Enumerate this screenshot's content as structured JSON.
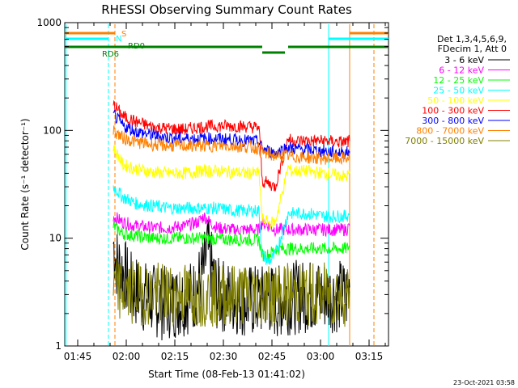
{
  "chart_data": {
    "type": "line",
    "title": "RHESSI Observing Summary Count Rates",
    "xlabel": "Start Time (08-Feb-13 01:41:02)",
    "ylabel": "Count Rate (s⁻¹ detector⁻¹)",
    "y_scale": "log",
    "ylim": [
      1,
      1000
    ],
    "xlim_minutes": [
      0,
      100
    ],
    "x_ticks": [
      {
        "minute": 4,
        "label": "01:45"
      },
      {
        "minute": 19,
        "label": "02:00"
      },
      {
        "minute": 34,
        "label": "02:15"
      },
      {
        "minute": 49,
        "label": "02:30"
      },
      {
        "minute": 64,
        "label": "02:45"
      },
      {
        "minute": 79,
        "label": "03:00"
      },
      {
        "minute": 94,
        "label": "03:15"
      }
    ],
    "y_ticks": [
      {
        "value": 1,
        "label": "1"
      },
      {
        "value": 10,
        "label": "10"
      },
      {
        "value": 100,
        "label": "100"
      },
      {
        "value": 1000,
        "label": "1000"
      }
    ],
    "legend": {
      "placement": "right",
      "header": [
        "Det 1,3,4,5,6,9,",
        "FDecim 1, Att 0"
      ]
    },
    "series": [
      {
        "name": "3 - 6 keV",
        "color": "#000000",
        "points": [
          [
            15,
            9
          ],
          [
            16,
            6
          ],
          [
            18,
            5
          ],
          [
            20,
            3.5
          ],
          [
            25,
            2.8
          ],
          [
            30,
            2.5
          ],
          [
            35,
            2.6
          ],
          [
            40,
            3
          ],
          [
            43,
            5
          ],
          [
            44,
            8
          ],
          [
            45,
            6
          ],
          [
            47,
            3
          ],
          [
            52,
            2.8
          ],
          [
            57,
            2.6
          ],
          [
            60,
            2.6
          ],
          [
            61,
            2.6
          ],
          [
            62,
            3
          ],
          [
            63,
            2.8
          ],
          [
            65,
            2.5
          ],
          [
            69,
            2.8
          ],
          [
            70,
            2.8
          ],
          [
            75,
            2.9
          ],
          [
            80,
            3
          ],
          [
            85,
            2.9
          ],
          [
            87,
            2.9
          ],
          [
            88,
            3.5
          ]
        ]
      },
      {
        "name": "6 - 12 keV",
        "color": "#ff00ff",
        "points": [
          [
            15,
            16
          ],
          [
            18,
            14
          ],
          [
            22,
            13
          ],
          [
            27,
            12.5
          ],
          [
            32,
            12.5
          ],
          [
            37,
            13
          ],
          [
            41,
            14
          ],
          [
            43,
            16
          ],
          [
            45,
            14
          ],
          [
            47,
            12.5
          ],
          [
            52,
            12
          ],
          [
            57,
            12
          ],
          [
            60,
            12
          ],
          [
            61,
            14
          ],
          [
            63,
            13
          ],
          [
            65,
            12
          ],
          [
            69,
            12
          ],
          [
            70,
            12
          ],
          [
            75,
            12
          ],
          [
            80,
            12
          ],
          [
            85,
            12
          ],
          [
            87,
            12
          ],
          [
            88,
            13
          ]
        ]
      },
      {
        "name": "12 - 25 keV",
        "color": "#00ff00",
        "points": [
          [
            15,
            13
          ],
          [
            18,
            11
          ],
          [
            22,
            10.5
          ],
          [
            27,
            10
          ],
          [
            32,
            10
          ],
          [
            37,
            10
          ],
          [
            42,
            10
          ],
          [
            47,
            9.8
          ],
          [
            52,
            9.7
          ],
          [
            57,
            9.7
          ],
          [
            60,
            9.6
          ],
          [
            61,
            7
          ],
          [
            63,
            7
          ],
          [
            65,
            8
          ],
          [
            69,
            8
          ],
          [
            70,
            8
          ],
          [
            75,
            8
          ],
          [
            80,
            8
          ],
          [
            85,
            8
          ],
          [
            87,
            8
          ],
          [
            88,
            8.5
          ]
        ]
      },
      {
        "name": "25 - 50 keV",
        "color": "#00ffff",
        "points": [
          [
            15,
            30
          ],
          [
            18,
            24
          ],
          [
            22,
            21
          ],
          [
            27,
            20
          ],
          [
            32,
            19
          ],
          [
            37,
            19
          ],
          [
            42,
            19
          ],
          [
            47,
            19
          ],
          [
            52,
            18
          ],
          [
            57,
            18
          ],
          [
            60,
            18
          ],
          [
            61,
            7
          ],
          [
            63,
            6
          ],
          [
            65,
            7
          ],
          [
            69,
            17
          ],
          [
            70,
            17
          ],
          [
            75,
            17
          ],
          [
            80,
            16
          ],
          [
            85,
            16
          ],
          [
            87,
            16
          ],
          [
            88,
            17
          ]
        ]
      },
      {
        "name": "50 - 100 keV",
        "color": "#ffff00",
        "points": [
          [
            15,
            70
          ],
          [
            18,
            48
          ],
          [
            22,
            44
          ],
          [
            27,
            41
          ],
          [
            32,
            40
          ],
          [
            37,
            40
          ],
          [
            42,
            42
          ],
          [
            47,
            42
          ],
          [
            52,
            41
          ],
          [
            57,
            40
          ],
          [
            60,
            40
          ],
          [
            61,
            15
          ],
          [
            63,
            14
          ],
          [
            65,
            14
          ],
          [
            69,
            45
          ],
          [
            70,
            42
          ],
          [
            75,
            42
          ],
          [
            80,
            40
          ],
          [
            85,
            38
          ],
          [
            87,
            37
          ],
          [
            88,
            40
          ]
        ]
      },
      {
        "name": "100 - 300 keV",
        "color": "#ff0000",
        "points": [
          [
            15,
            175
          ],
          [
            18,
            135
          ],
          [
            22,
            120
          ],
          [
            27,
            108
          ],
          [
            32,
            104
          ],
          [
            37,
            102
          ],
          [
            42,
            108
          ],
          [
            47,
            110
          ],
          [
            52,
            110
          ],
          [
            57,
            108
          ],
          [
            60,
            106
          ],
          [
            61,
            34
          ],
          [
            63,
            32
          ],
          [
            65,
            30
          ],
          [
            69,
            85
          ],
          [
            70,
            80
          ],
          [
            75,
            80
          ],
          [
            80,
            80
          ],
          [
            85,
            78
          ],
          [
            87,
            78
          ],
          [
            88,
            80
          ]
        ]
      },
      {
        "name": "300 - 800 keV",
        "color": "#0000ff",
        "points": [
          [
            15,
            140
          ],
          [
            18,
            110
          ],
          [
            22,
            98
          ],
          [
            27,
            90
          ],
          [
            32,
            86
          ],
          [
            37,
            84
          ],
          [
            42,
            84
          ],
          [
            47,
            84
          ],
          [
            52,
            82
          ],
          [
            57,
            80
          ],
          [
            60,
            78
          ],
          [
            61,
            68
          ],
          [
            63,
            64
          ],
          [
            65,
            62
          ],
          [
            69,
            70
          ],
          [
            70,
            68
          ],
          [
            75,
            66
          ],
          [
            80,
            64
          ],
          [
            85,
            62
          ],
          [
            87,
            62
          ],
          [
            88,
            64
          ]
        ]
      },
      {
        "name": "800 - 7000 keV",
        "color": "#ff8000",
        "points": [
          [
            15,
            100
          ],
          [
            18,
            85
          ],
          [
            22,
            78
          ],
          [
            27,
            74
          ],
          [
            32,
            72
          ],
          [
            37,
            72
          ],
          [
            42,
            72
          ],
          [
            47,
            72
          ],
          [
            52,
            72
          ],
          [
            57,
            70
          ],
          [
            60,
            68
          ],
          [
            61,
            62
          ],
          [
            63,
            60
          ],
          [
            65,
            58
          ],
          [
            69,
            58
          ],
          [
            70,
            57
          ],
          [
            75,
            56
          ],
          [
            80,
            55
          ],
          [
            85,
            55
          ],
          [
            87,
            55
          ],
          [
            88,
            56
          ]
        ]
      },
      {
        "name": "7000 - 15000 keV",
        "color": "#808000",
        "points": [
          [
            15,
            3.5
          ],
          [
            18,
            3.2
          ],
          [
            22,
            3.1
          ],
          [
            27,
            3
          ],
          [
            32,
            3
          ],
          [
            37,
            3
          ],
          [
            42,
            3
          ],
          [
            47,
            3
          ],
          [
            52,
            3
          ],
          [
            57,
            3
          ],
          [
            60,
            3
          ],
          [
            61,
            3
          ],
          [
            63,
            3
          ],
          [
            65,
            3
          ],
          [
            69,
            3
          ],
          [
            70,
            3
          ],
          [
            75,
            3
          ],
          [
            80,
            3
          ],
          [
            85,
            3
          ],
          [
            87,
            3
          ],
          [
            88,
            3.2
          ]
        ]
      }
    ],
    "flag_labels": [
      {
        "text": "S",
        "color": "#ff8000"
      },
      {
        "text": "N",
        "color": "#00ffff"
      },
      {
        "text": "RD0",
        "color": "#008000"
      },
      {
        "text": "RD6",
        "color": "#008000"
      }
    ],
    "timestamp": "23-Oct-2021 03:58"
  }
}
